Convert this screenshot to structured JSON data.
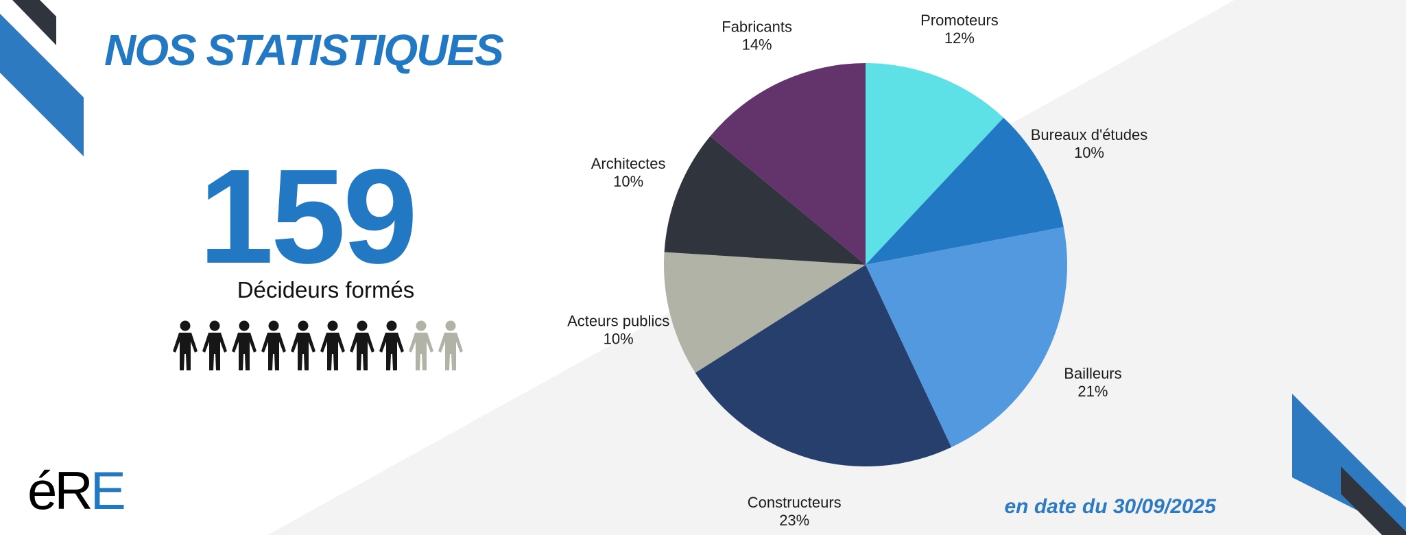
{
  "header": {
    "title": "NOS STATISTIQUES"
  },
  "stat": {
    "value": "159",
    "caption": "Décideurs formés",
    "people_shown": 10,
    "people_highlighted": 8
  },
  "footer": {
    "date_note": "en date du 30/09/2025"
  },
  "logo": {
    "text_dark": "éR",
    "text_blue": "E"
  },
  "colors": {
    "brand_blue": "#2278c3",
    "dark": "#30343c",
    "people_dark": "#161616",
    "people_light": "#b1b3a6",
    "background_grey": "#f3f3f3"
  },
  "chart_data": {
    "type": "pie",
    "title": "",
    "start": "12 o'clock",
    "direction": "clockwise",
    "slices": [
      {
        "label": "Promoteurs",
        "value": 12,
        "value_label": "12%",
        "color": "#5de1e6"
      },
      {
        "label": "Bureaux d'études",
        "value": 10,
        "value_label": "10%",
        "color": "#2278c3"
      },
      {
        "label": "Bailleurs",
        "value": 21,
        "value_label": "21%",
        "color": "#5299df"
      },
      {
        "label": "Constructeurs",
        "value": 23,
        "value_label": "23%",
        "color": "#273f6d"
      },
      {
        "label": "Acteurs publics",
        "value": 10,
        "value_label": "10%",
        "color": "#b1b3a6"
      },
      {
        "label": "Architectes",
        "value": 10,
        "value_label": "10%",
        "color": "#30343c"
      },
      {
        "label": "Fabricants",
        "value": 14,
        "value_label": "14%",
        "color": "#62346b"
      }
    ]
  }
}
